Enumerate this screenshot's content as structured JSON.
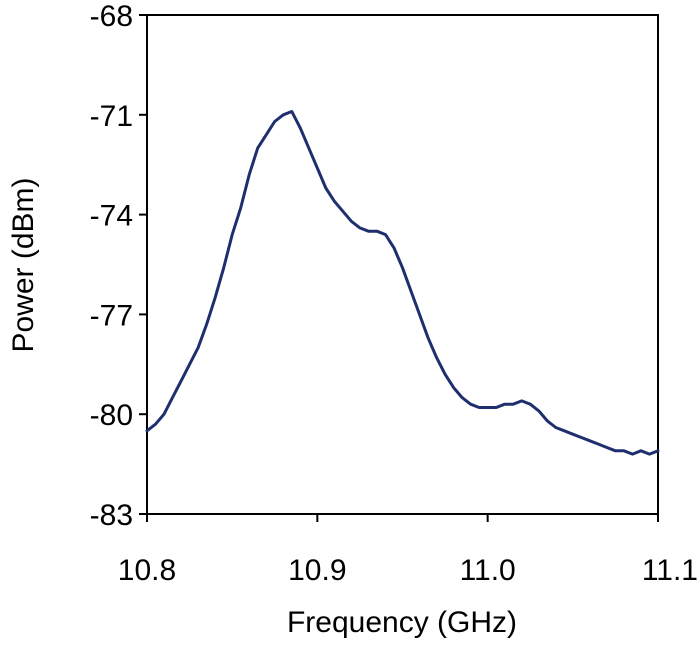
{
  "chart_data": {
    "type": "line",
    "xlabel": "Frequency (GHz)",
    "ylabel": "Power (dBm)",
    "xlim": [
      10.8,
      11.1
    ],
    "ylim": [
      -83,
      -68
    ],
    "xticks": [
      10.8,
      10.9,
      11.0,
      11.1
    ],
    "xtick_labels": [
      "10.8",
      "10.9",
      "11.0",
      "11.1"
    ],
    "yticks": [
      -68,
      -71,
      -74,
      -77,
      -80,
      -83
    ],
    "ytick_labels": [
      "-68",
      "-71",
      "-74",
      "-77",
      "-80",
      "-83"
    ],
    "grid": false,
    "line_color": "#1f2f6e",
    "series": [
      {
        "x": [
          10.8,
          10.805,
          10.81,
          10.815,
          10.82,
          10.825,
          10.83,
          10.835,
          10.84,
          10.845,
          10.85,
          10.855,
          10.86,
          10.865,
          10.87,
          10.875,
          10.88,
          10.885,
          10.89,
          10.895,
          10.9,
          10.905,
          10.91,
          10.915,
          10.92,
          10.925,
          10.93,
          10.935,
          10.94,
          10.945,
          10.95,
          10.955,
          10.96,
          10.965,
          10.97,
          10.975,
          10.98,
          10.985,
          10.99,
          10.995,
          11.0,
          11.005,
          11.01,
          11.015,
          11.02,
          11.025,
          11.03,
          11.035,
          11.04,
          11.045,
          11.05,
          11.055,
          11.06,
          11.065,
          11.07,
          11.075,
          11.08,
          11.085,
          11.09,
          11.095,
          11.1
        ],
        "y": [
          -80.5,
          -80.3,
          -80.0,
          -79.5,
          -79.0,
          -78.5,
          -78.0,
          -77.3,
          -76.5,
          -75.6,
          -74.6,
          -73.8,
          -72.8,
          -72.0,
          -71.6,
          -71.2,
          -71.0,
          -70.9,
          -71.4,
          -72.0,
          -72.6,
          -73.2,
          -73.6,
          -73.9,
          -74.2,
          -74.4,
          -74.5,
          -74.5,
          -74.6,
          -75.0,
          -75.6,
          -76.3,
          -77.0,
          -77.7,
          -78.3,
          -78.8,
          -79.2,
          -79.5,
          -79.7,
          -79.8,
          -79.8,
          -79.8,
          -79.7,
          -79.7,
          -79.6,
          -79.7,
          -79.9,
          -80.2,
          -80.4,
          -80.5,
          -80.6,
          -80.7,
          -80.8,
          -80.9,
          -81.0,
          -81.1,
          -81.1,
          -81.2,
          -81.1,
          -81.2,
          -81.1
        ]
      }
    ]
  }
}
